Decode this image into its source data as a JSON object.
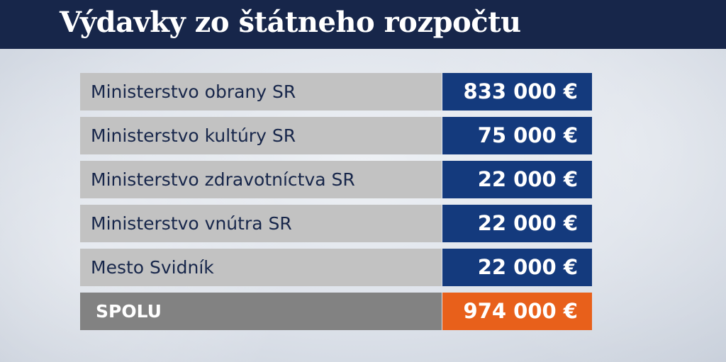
{
  "title": "Výdavky zo štátneho rozpočtu",
  "rows": [
    {
      "label": "Ministerstvo obrany SR",
      "value": "833 000 €"
    },
    {
      "label": "Ministerstvo kultúry SR",
      "value": "75 000 €"
    },
    {
      "label": "Ministerstvo zdravotníctva SR",
      "value": "22 000 €"
    },
    {
      "label": "Ministerstvo vnútra SR",
      "value": "22 000 €"
    },
    {
      "label": "Mesto Svidník",
      "value": "22 000 €"
    }
  ],
  "total": {
    "label": "SPOLU",
    "value": "974 000 €"
  },
  "colors": {
    "header_bg": "#17264a",
    "label_bg": "#c2c2c2",
    "value_bg": "#143a7d",
    "total_label_bg": "#828282",
    "total_value_bg": "#e8601b"
  }
}
